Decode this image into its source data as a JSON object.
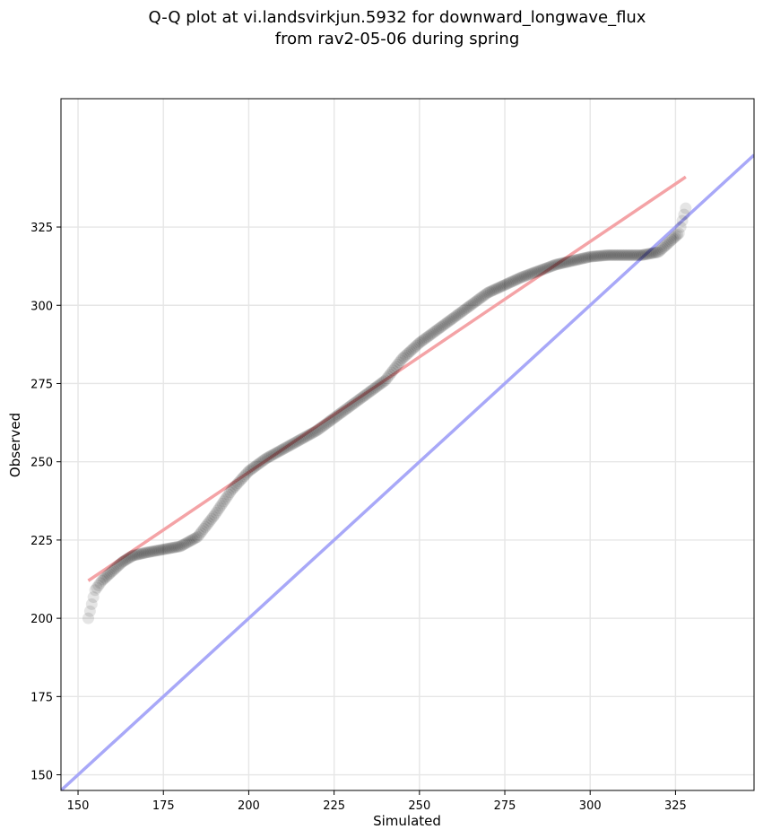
{
  "chart_data": {
    "type": "scatter",
    "title_line1": "Q-Q plot at vi.landsvirkjun.5932 for downward_longwave_flux",
    "title_line2": "from rav2-05-06 during spring",
    "xlabel": "Simulated",
    "ylabel": "Observed",
    "xlim": [
      145,
      348
    ],
    "ylim": [
      145,
      366
    ],
    "xticks": [
      150,
      175,
      200,
      225,
      250,
      275,
      300,
      325
    ],
    "yticks": [
      150,
      175,
      200,
      225,
      250,
      275,
      300,
      325
    ],
    "grid": true,
    "legend": "none",
    "colors": {
      "points": "#000000",
      "fit_line": "#f4a3a6",
      "identity_line": "#a8a8f8",
      "grid": "#e6e6e6"
    },
    "fit_line": {
      "x": [
        153,
        328
      ],
      "y": [
        212,
        341
      ]
    },
    "identity_line": {
      "x": [
        145,
        348
      ],
      "y": [
        145,
        348
      ]
    },
    "quantile_anchors": {
      "x": [
        153,
        155,
        157,
        160,
        163,
        166,
        170,
        175,
        180,
        185,
        190,
        195,
        200,
        205,
        210,
        220,
        230,
        240,
        245,
        250,
        255,
        260,
        270,
        280,
        290,
        300,
        305,
        310,
        315,
        320,
        323,
        326,
        328
      ],
      "y": [
        200,
        209,
        212,
        215,
        218,
        220,
        221,
        222,
        223,
        226,
        233,
        241,
        247,
        251,
        254,
        260,
        268,
        276,
        283,
        288,
        292,
        296,
        304,
        309,
        313,
        315.5,
        316,
        316,
        316,
        317,
        320,
        323,
        331
      ]
    }
  }
}
